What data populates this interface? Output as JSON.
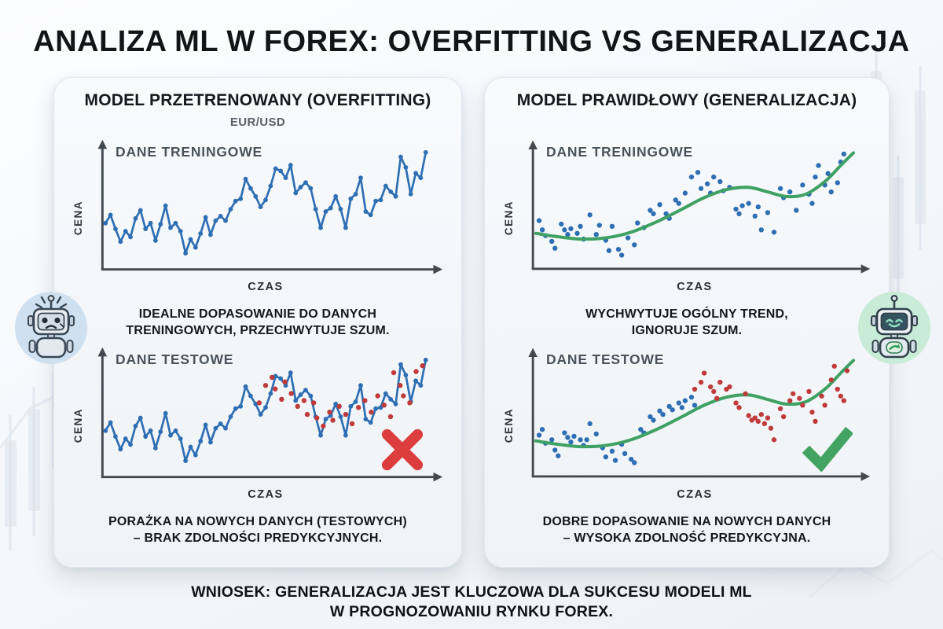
{
  "title": "ANALIZA ML W FOREX: OVERFITTING VS GENERALIZACJA",
  "conclusion": {
    "line1": "WNIOSEK: GENERALIZACJA JEST KLUCZOWA DLA SUKCESU MODELI ML",
    "line2": "W PROGNOZOWANIU RYNKU FOREX."
  },
  "colors": {
    "blue": "#2E6FB4",
    "red": "#C03A3A",
    "red_mark": "#DC3D3D",
    "green": "#3FA163",
    "green_mark": "#43A362",
    "axis": "#43494F"
  },
  "panels": [
    {
      "title": "MODEL PRZETRENOWANY (OVERFITTING)",
      "subtitle": "EUR/USD",
      "charts": [
        {
          "label": "DANE TRENINGOWE",
          "ylabel": "CENA",
          "xlabel": "CZAS"
        },
        {
          "label": "DANE TESTOWE",
          "ylabel": "CENA",
          "xlabel": "CZAS"
        }
      ],
      "caption_mid": [
        "IDEALNE DOPASOWANIE DO DANYCH",
        "TRENINGOWYCH, PRZECHWYTUJE SZUM."
      ],
      "caption_bottom": [
        "PORAŻKA NA NOWYCH DANYCH (TESTOWYCH)",
        "– BRAK ZDOLNOŚCI PREDYKCYJNYCH."
      ]
    },
    {
      "title": "MODEL PRAWIDŁOWY (GENERALIZACJA)",
      "subtitle": "",
      "charts": [
        {
          "label": "DANE TRENINGOWE",
          "ylabel": "CENA",
          "xlabel": "CZAS"
        },
        {
          "label": "DANE TESTOWE",
          "ylabel": "CENA",
          "xlabel": "CZAS"
        }
      ],
      "caption_mid": [
        "WYCHWYTUJE OGÓLNY TREND,",
        "IGNORUJE SZUM."
      ],
      "caption_bottom": [
        "DOBRE DOPASOWANIE NA NOWYCH DANYCH",
        "– WYSOKA ZDOLNOŚĆ PREDYKCYJNA."
      ]
    }
  ],
  "series": {
    "left_train": {
      "type": "line",
      "line": [
        36,
        43,
        31,
        20,
        29,
        24,
        40,
        47,
        31,
        36,
        21,
        35,
        51,
        32,
        36,
        29,
        10,
        22,
        15,
        27,
        41,
        26,
        38,
        42,
        38,
        48,
        55,
        57,
        74,
        66,
        59,
        50,
        56,
        68,
        83,
        81,
        75,
        86,
        62,
        67,
        71,
        66,
        48,
        32,
        46,
        49,
        59,
        48,
        32,
        57,
        61,
        75,
        46,
        43,
        55,
        56,
        68,
        63,
        59,
        93,
        84,
        61,
        79,
        75,
        97
      ]
    },
    "left_test": {
      "type": "line+scatter",
      "line": [
        36,
        43,
        31,
        20,
        29,
        24,
        40,
        47,
        31,
        36,
        21,
        35,
        51,
        32,
        36,
        29,
        10,
        22,
        15,
        27,
        41,
        26,
        38,
        42,
        38,
        48,
        55,
        57,
        74,
        66,
        59,
        50,
        56,
        68,
        83,
        81,
        75,
        86,
        62,
        67,
        71,
        66,
        48,
        32,
        46,
        49,
        59,
        48,
        32,
        57,
        61,
        75,
        46,
        43,
        55,
        56,
        68,
        63,
        59,
        93,
        84,
        61,
        79,
        75,
        97
      ],
      "red_dots": [
        [
          48,
          60
        ],
        [
          50,
          75
        ],
        [
          52,
          82
        ],
        [
          53,
          72
        ],
        [
          55,
          63
        ],
        [
          56,
          78
        ],
        [
          58,
          68
        ],
        [
          60,
          57
        ],
        [
          62,
          62
        ],
        [
          63,
          50
        ],
        [
          65,
          60
        ],
        [
          66,
          47
        ],
        [
          68,
          40
        ],
        [
          70,
          52
        ],
        [
          71,
          45
        ],
        [
          73,
          57
        ],
        [
          75,
          50
        ],
        [
          77,
          42
        ],
        [
          79,
          56
        ],
        [
          81,
          62
        ],
        [
          83,
          52
        ],
        [
          85,
          66
        ],
        [
          87,
          58
        ],
        [
          89,
          48
        ],
        [
          90,
          86
        ],
        [
          92,
          75
        ],
        [
          93,
          66
        ],
        [
          95,
          60
        ],
        [
          97,
          87
        ],
        [
          99,
          92
        ]
      ]
    },
    "right_train": {
      "type": "scatter+trend",
      "curve": [
        [
          0,
          27
        ],
        [
          7,
          24
        ],
        [
          14,
          22
        ],
        [
          22,
          23
        ],
        [
          30,
          28
        ],
        [
          38,
          37
        ],
        [
          46,
          48
        ],
        [
          53,
          58
        ],
        [
          60,
          65
        ],
        [
          67,
          67
        ],
        [
          73,
          63
        ],
        [
          79,
          59
        ],
        [
          85,
          61
        ],
        [
          91,
          72
        ],
        [
          96,
          86
        ],
        [
          100,
          97
        ]
      ],
      "blue_dots": [
        [
          1,
          38
        ],
        [
          2,
          30
        ],
        [
          3,
          25
        ],
        [
          5,
          20
        ],
        [
          6,
          14
        ],
        [
          8,
          35
        ],
        [
          9,
          30
        ],
        [
          10,
          26
        ],
        [
          11,
          31
        ],
        [
          13,
          27
        ],
        [
          14,
          33
        ],
        [
          15,
          22
        ],
        [
          17,
          43
        ],
        [
          19,
          26
        ],
        [
          20,
          34
        ],
        [
          22,
          21
        ],
        [
          23,
          12
        ],
        [
          24,
          33
        ],
        [
          26,
          13
        ],
        [
          27,
          8
        ],
        [
          29,
          23
        ],
        [
          31,
          17
        ],
        [
          32,
          36
        ],
        [
          34,
          32
        ],
        [
          36,
          47
        ],
        [
          37,
          44
        ],
        [
          39,
          52
        ],
        [
          41,
          44
        ],
        [
          42,
          40
        ],
        [
          44,
          56
        ],
        [
          45,
          53
        ],
        [
          47,
          62
        ],
        [
          49,
          76
        ],
        [
          51,
          80
        ],
        [
          52,
          66
        ],
        [
          54,
          70
        ],
        [
          55,
          62
        ],
        [
          56,
          76
        ],
        [
          58,
          72
        ],
        [
          59,
          64
        ],
        [
          61,
          67
        ],
        [
          63,
          48
        ],
        [
          64,
          44
        ],
        [
          65,
          51
        ],
        [
          67,
          53
        ],
        [
          69,
          42
        ],
        [
          70,
          50
        ],
        [
          71,
          30
        ],
        [
          73,
          45
        ],
        [
          75,
          28
        ],
        [
          77,
          66
        ],
        [
          78,
          58
        ],
        [
          80,
          63
        ],
        [
          82,
          47
        ],
        [
          84,
          69
        ],
        [
          86,
          61
        ],
        [
          87,
          53
        ],
        [
          88,
          76
        ],
        [
          89,
          86
        ],
        [
          91,
          69
        ],
        [
          92,
          79
        ],
        [
          93,
          63
        ],
        [
          95,
          71
        ],
        [
          96,
          89
        ],
        [
          97,
          96
        ]
      ]
    },
    "right_test": {
      "type": "scatter+trend",
      "curve": [
        [
          0,
          27
        ],
        [
          7,
          24
        ],
        [
          14,
          22
        ],
        [
          22,
          23
        ],
        [
          30,
          28
        ],
        [
          38,
          37
        ],
        [
          46,
          48
        ],
        [
          53,
          58
        ],
        [
          60,
          65
        ],
        [
          67,
          67
        ],
        [
          73,
          63
        ],
        [
          79,
          59
        ],
        [
          85,
          61
        ],
        [
          91,
          72
        ],
        [
          96,
          86
        ],
        [
          100,
          97
        ]
      ],
      "blue_dots": [
        [
          1,
          32
        ],
        [
          2,
          37
        ],
        [
          3,
          25
        ],
        [
          5,
          28
        ],
        [
          6,
          19
        ],
        [
          7,
          14
        ],
        [
          9,
          34
        ],
        [
          10,
          30
        ],
        [
          11,
          26
        ],
        [
          12,
          31
        ],
        [
          14,
          28
        ],
        [
          15,
          23
        ],
        [
          16,
          28
        ],
        [
          17,
          42
        ],
        [
          19,
          33
        ],
        [
          21,
          21
        ],
        [
          22,
          13
        ],
        [
          24,
          18
        ],
        [
          25,
          10
        ],
        [
          27,
          24
        ],
        [
          28,
          16
        ],
        [
          30,
          11
        ],
        [
          31,
          8
        ],
        [
          33,
          37
        ],
        [
          34,
          34
        ],
        [
          36,
          48
        ],
        [
          37,
          45
        ],
        [
          39,
          53
        ],
        [
          40,
          50
        ],
        [
          42,
          57
        ],
        [
          43,
          54
        ],
        [
          45,
          60
        ],
        [
          46,
          56
        ],
        [
          47,
          62
        ],
        [
          49,
          65
        ],
        [
          50,
          58
        ]
      ],
      "red_dots": [
        [
          50,
          72
        ],
        [
          52,
          78
        ],
        [
          53,
          86
        ],
        [
          55,
          74
        ],
        [
          56,
          70
        ],
        [
          57,
          64
        ],
        [
          58,
          78
        ],
        [
          60,
          72
        ],
        [
          61,
          74
        ],
        [
          63,
          60
        ],
        [
          64,
          56
        ],
        [
          66,
          68
        ],
        [
          67,
          49
        ],
        [
          68,
          45
        ],
        [
          69,
          47
        ],
        [
          70,
          44
        ],
        [
          71,
          50
        ],
        [
          72,
          42
        ],
        [
          73,
          47
        ],
        [
          74,
          38
        ],
        [
          75,
          28
        ],
        [
          77,
          55
        ],
        [
          78,
          48
        ],
        [
          80,
          62
        ],
        [
          81,
          68
        ],
        [
          83,
          64
        ],
        [
          84,
          58
        ],
        [
          86,
          70
        ],
        [
          87,
          52
        ],
        [
          88,
          44
        ],
        [
          90,
          66
        ],
        [
          91,
          58
        ],
        [
          93,
          80
        ],
        [
          94,
          92
        ],
        [
          95,
          72
        ],
        [
          96,
          66
        ],
        [
          97,
          62
        ],
        [
          98,
          88
        ]
      ]
    }
  }
}
